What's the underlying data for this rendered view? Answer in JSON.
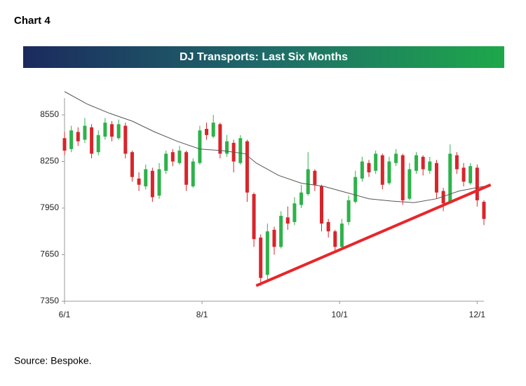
{
  "header": "Chart 4",
  "source": "Source: Bespoke.",
  "chart_data": {
    "type": "candlestick",
    "title": "DJ Transports: Last Six Months",
    "up_color": "#2eb24a",
    "down_color": "#d8252b",
    "xlim": [
      0,
      186
    ],
    "xticks": [
      {
        "value": 0,
        "label": "6/1"
      },
      {
        "value": 61,
        "label": "8/1"
      },
      {
        "value": 122,
        "label": "10/1"
      },
      {
        "value": 183,
        "label": "12/1"
      }
    ],
    "ylim": [
      7350,
      8850
    ],
    "yticks": [
      7350,
      7650,
      7950,
      8250,
      8550
    ],
    "candles": {
      "x": [
        0,
        3,
        6,
        9,
        12,
        15,
        18,
        21,
        24,
        27,
        30,
        33,
        36,
        39,
        42,
        45,
        48,
        51,
        54,
        57,
        60,
        63,
        66,
        69,
        72,
        75,
        78,
        81,
        84,
        87,
        90,
        93,
        96,
        99,
        102,
        105,
        108,
        111,
        114,
        117,
        120,
        123,
        126,
        129,
        132,
        135,
        138,
        141,
        144,
        147,
        150,
        153,
        156,
        159,
        162,
        165,
        168,
        171,
        174,
        177,
        180,
        183,
        186
      ],
      "open": [
        8400,
        8330,
        8440,
        8390,
        8470,
        8310,
        8410,
        8490,
        8400,
        8480,
        8310,
        8140,
        8090,
        8190,
        8030,
        8190,
        8310,
        8240,
        8310,
        8090,
        8240,
        8460,
        8410,
        8490,
        8300,
        8370,
        8240,
        8380,
        8040,
        7760,
        7520,
        7810,
        7700,
        7890,
        7860,
        7970,
        8040,
        8190,
        8090,
        7860,
        7800,
        7700,
        7860,
        7990,
        8140,
        8240,
        8190,
        8290,
        8110,
        8240,
        8290,
        8010,
        8190,
        8280,
        8190,
        8240,
        8060,
        7990,
        8290,
        8210,
        8110,
        8210,
        7990
      ],
      "high": [
        8440,
        8480,
        8470,
        8530,
        8490,
        8450,
        8530,
        8510,
        8520,
        8500,
        8320,
        8180,
        8230,
        8210,
        8240,
        8320,
        8330,
        8350,
        8320,
        8270,
        8480,
        8500,
        8550,
        8500,
        8420,
        8390,
        8420,
        8390,
        8050,
        7780,
        7850,
        7830,
        7930,
        7960,
        8020,
        8100,
        8310,
        8200,
        8100,
        7880,
        7810,
        7880,
        8030,
        8190,
        8280,
        8260,
        8320,
        8300,
        8280,
        8330,
        8300,
        8240,
        8310,
        8290,
        8280,
        8260,
        8080,
        8360,
        8310,
        8240,
        8240,
        8230,
        8000
      ],
      "low": [
        8290,
        8310,
        8350,
        8370,
        8270,
        8290,
        8390,
        8380,
        8390,
        8270,
        8120,
        8060,
        8070,
        7990,
        8010,
        8170,
        8220,
        8230,
        8060,
        8080,
        8230,
        8390,
        8400,
        8270,
        8280,
        8180,
        8230,
        7990,
        7700,
        7450,
        7490,
        7650,
        7690,
        7810,
        7840,
        7950,
        8030,
        8060,
        7800,
        7760,
        7660,
        7680,
        7840,
        7980,
        8120,
        8150,
        8170,
        8070,
        8100,
        8220,
        7970,
        8000,
        8170,
        8160,
        8170,
        8010,
        7930,
        7980,
        8170,
        8090,
        8100,
        7960,
        7840
      ],
      "close": [
        8320,
        8450,
        8380,
        8480,
        8300,
        8420,
        8500,
        8410,
        8490,
        8300,
        8150,
        8100,
        8200,
        8020,
        8200,
        8300,
        8250,
        8320,
        8100,
        8250,
        8450,
        8420,
        8500,
        8300,
        8380,
        8250,
        8400,
        8050,
        7750,
        7500,
        7800,
        7700,
        7900,
        7850,
        7980,
        8050,
        8200,
        8100,
        7850,
        7800,
        7700,
        7850,
        8000,
        8150,
        8250,
        8180,
        8300,
        8100,
        8250,
        8300,
        8000,
        8200,
        8290,
        8200,
        8250,
        8050,
        7980,
        8300,
        8200,
        8120,
        8220,
        8000,
        7880
      ]
    },
    "moving_average": {
      "color": "#555555",
      "x": [
        0,
        10,
        20,
        30,
        40,
        50,
        60,
        70,
        80,
        85,
        95,
        105,
        115,
        125,
        135,
        145,
        155,
        165,
        175,
        186
      ],
      "values": [
        8700,
        8620,
        8560,
        8510,
        8440,
        8380,
        8330,
        8320,
        8300,
        8240,
        8160,
        8110,
        8090,
        8050,
        8010,
        7995,
        7985,
        8010,
        8060,
        8090
      ]
    },
    "trendline": {
      "color": "#e8262a",
      "x": [
        85,
        189
      ],
      "values": [
        7450,
        8100
      ]
    }
  }
}
